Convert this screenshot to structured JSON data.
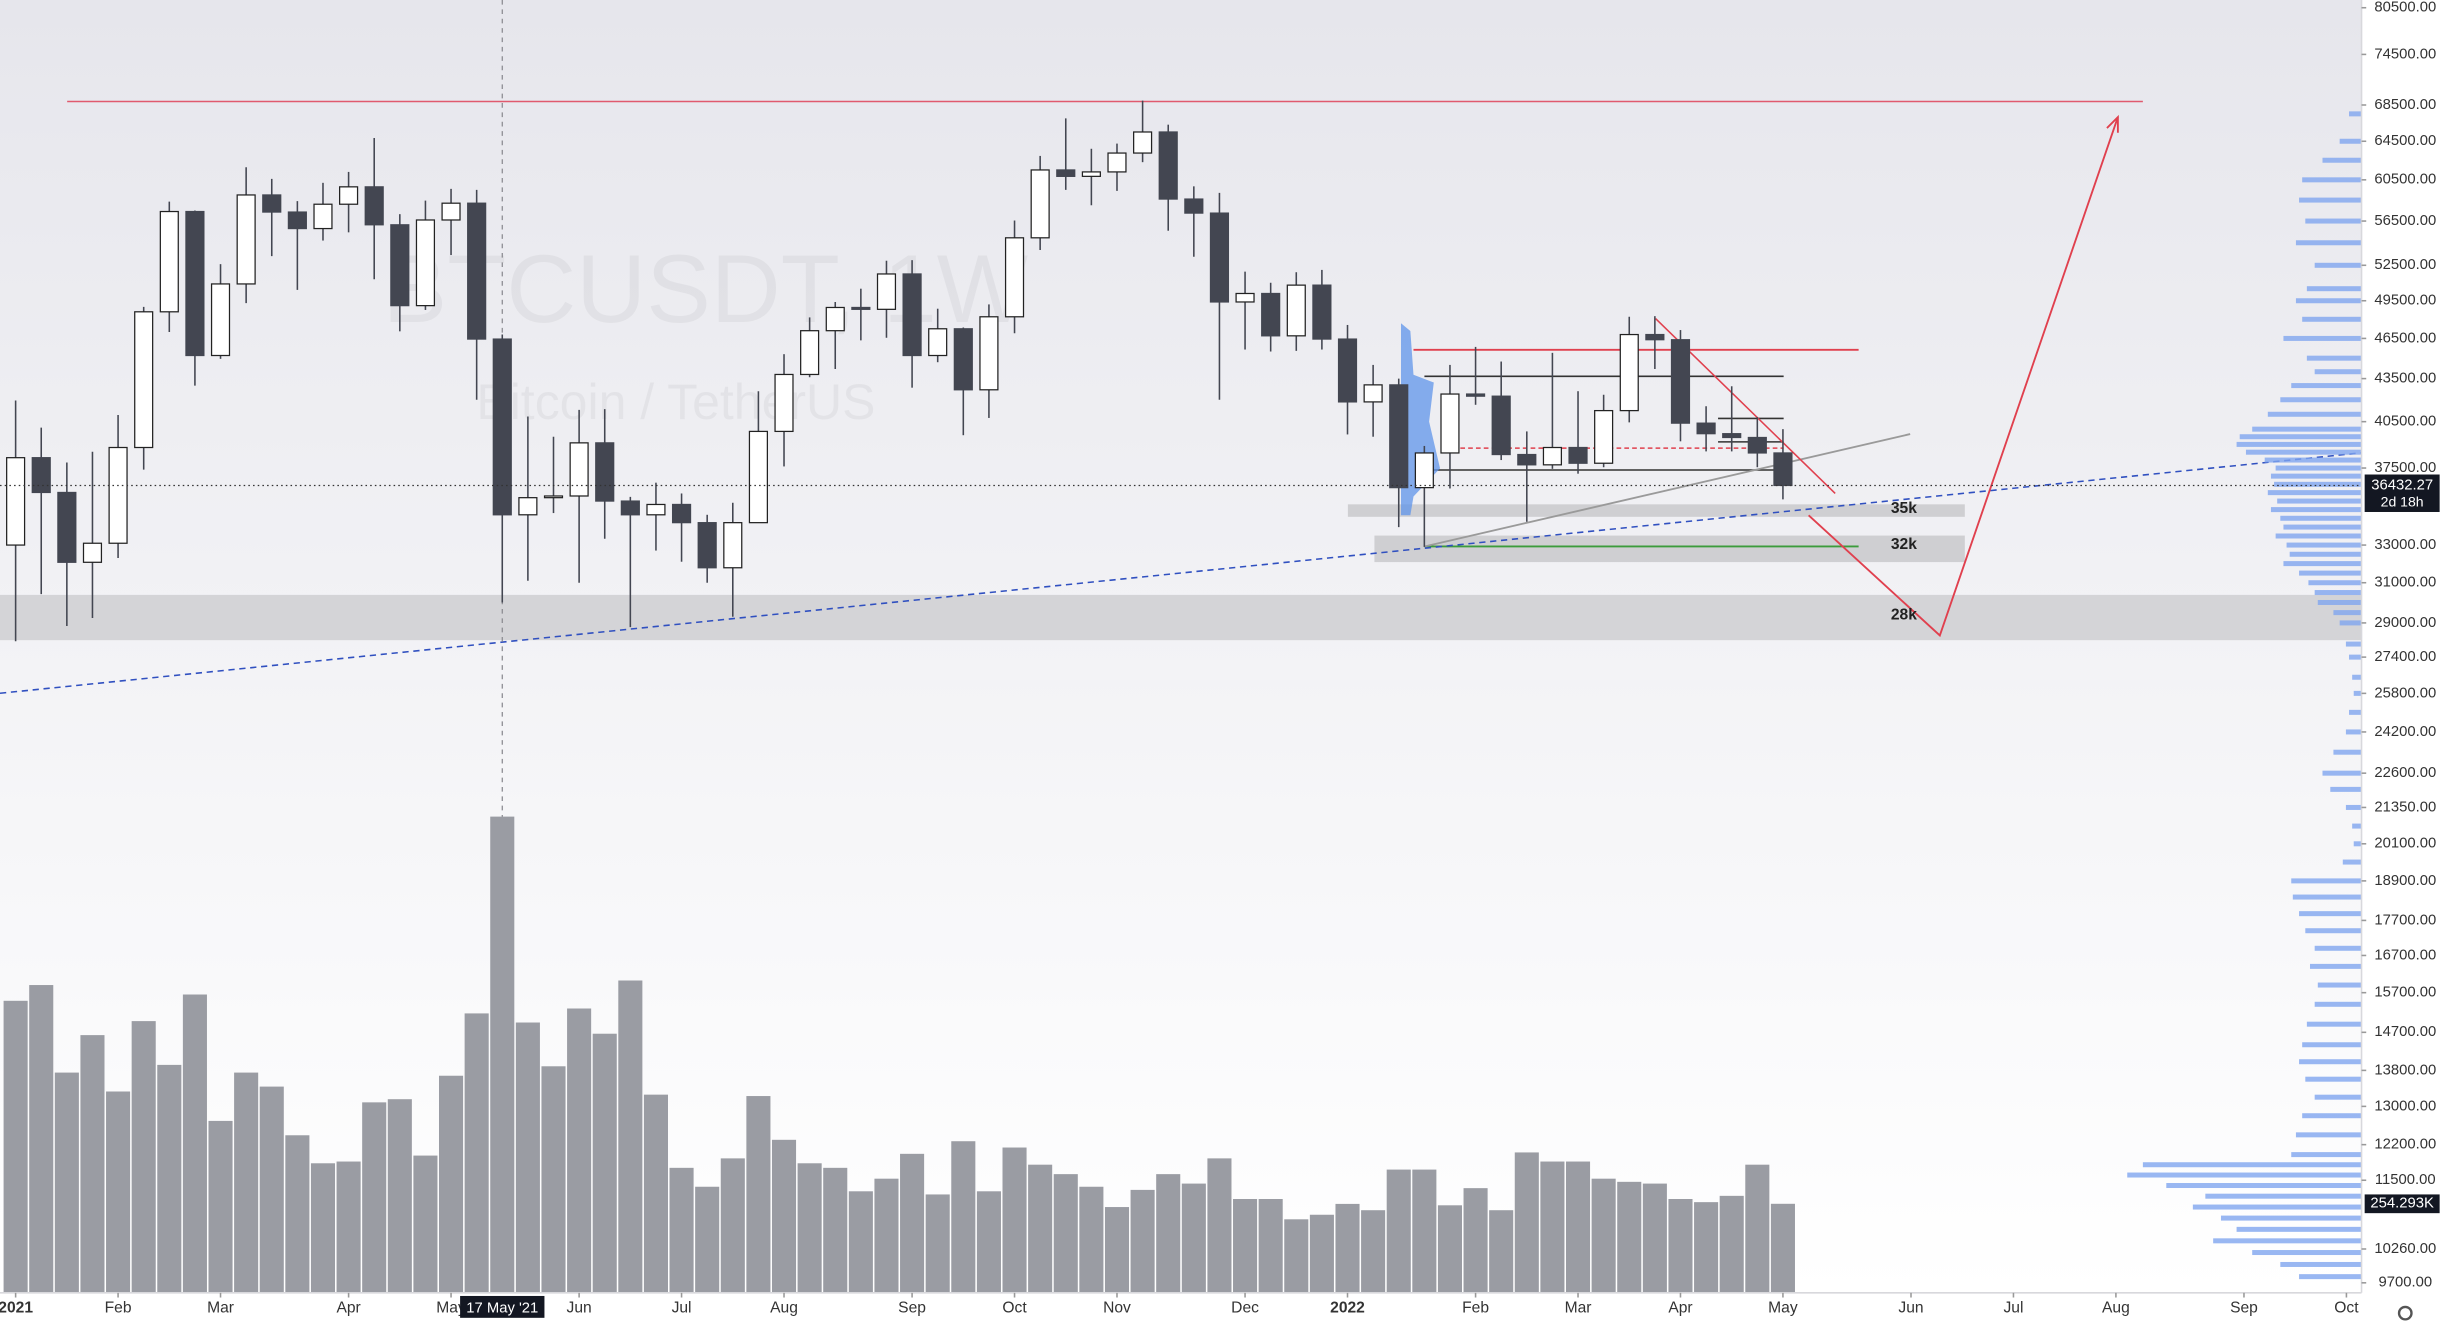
{
  "chart_data": {
    "type": "candlestick",
    "symbol": "BTCUSDT, 1W",
    "description": "Bitcoin / TetherUS",
    "categories": [
      null,
      null,
      null,
      null,
      null,
      null,
      null,
      null,
      null,
      null,
      null,
      null,
      null,
      null,
      null,
      null,
      null,
      null,
      null,
      null,
      null,
      null,
      null,
      null,
      null,
      null,
      null,
      null,
      null,
      null,
      null,
      null,
      null,
      null,
      null,
      null,
      null,
      null,
      null,
      null,
      null,
      null,
      null,
      null,
      null,
      null,
      null,
      null,
      null,
      null,
      null,
      null,
      null,
      null,
      null,
      null,
      null,
      null,
      null,
      null,
      null,
      null,
      null,
      null,
      null,
      null,
      null,
      null,
      null,
      null
    ],
    "open": [
      33000,
      38150,
      36010,
      32070,
      33100,
      38800,
      48600,
      57400,
      45200,
      50900,
      59000,
      57350,
      55800,
      58100,
      59800,
      56150,
      49100,
      56600,
      58200,
      46450,
      34700,
      35700,
      35800,
      39100,
      35500,
      34700,
      35300,
      34250,
      31780,
      34250,
      39850,
      43800,
      47100,
      48950,
      48800,
      51750,
      45200,
      47250,
      42700,
      48200,
      54950,
      61500,
      60850,
      61300,
      63250,
      65500,
      58600,
      57250,
      49400,
      50100,
      46700,
      50800,
      46450,
      41850,
      43050,
      36300,
      38450,
      42400,
      42250,
      38350,
      37700,
      38800,
      37800,
      41250,
      46800,
      46400,
      40400,
      39700,
      39450,
      38450
    ],
    "high": [
      41950,
      40100,
      37850,
      38530,
      40950,
      49000,
      58350,
      57500,
      52600,
      61780,
      60600,
      58400,
      60200,
      61300,
      64850,
      57150,
      58450,
      59600,
      59500,
      46800,
      40850,
      39500,
      41300,
      41350,
      35750,
      36600,
      35950,
      34700,
      35400,
      42600,
      45300,
      48150,
      49400,
      50500,
      52900,
      52950,
      48850,
      47350,
      49200,
      56550,
      62950,
      67000,
      63700,
      64250,
      69000,
      66300,
      59850,
      59200,
      51950,
      51000,
      51900,
      52100,
      47550,
      44500,
      43500,
      38900,
      44500,
      45850,
      44750,
      39850,
      45400,
      42600,
      42350,
      48200,
      48250,
      47150,
      41550,
      42950,
      40800,
      40000
    ],
    "low": [
      28130,
      30420,
      28850,
      29240,
      32300,
      37400,
      47000,
      43000,
      44950,
      49300,
      53300,
      50400,
      54700,
      55450,
      51300,
      47050,
      48750,
      53400,
      42000,
      30000,
      31100,
      34800,
      31000,
      33350,
      28800,
      32700,
      32100,
      31000,
      29300,
      34250,
      37600,
      43600,
      44200,
      46350,
      46550,
      42850,
      44700,
      39600,
      40750,
      46900,
      53850,
      59500,
      58000,
      59400,
      62300,
      55600,
      53250,
      42000,
      45650,
      45500,
      45550,
      45650,
      39650,
      39500,
      34000,
      32900,
      36250,
      41650,
      38000,
      34300,
      37450,
      37150,
      37550,
      40450,
      44200,
      39200,
      38550,
      38550,
      37550,
      35600
    ],
    "close": [
      38150,
      36010,
      32070,
      33100,
      38800,
      48600,
      57400,
      45200,
      50900,
      59000,
      57350,
      55800,
      58100,
      59800,
      56150,
      49100,
      56600,
      58200,
      46450,
      34700,
      35700,
      35800,
      39100,
      35500,
      34700,
      35300,
      34250,
      31780,
      34250,
      39850,
      43800,
      47100,
      48950,
      48800,
      51750,
      45200,
      47250,
      42700,
      48200,
      54950,
      61500,
      60850,
      61300,
      63250,
      65500,
      58600,
      57250,
      49400,
      50100,
      46700,
      50800,
      46450,
      41850,
      43050,
      36300,
      38450,
      42400,
      42250,
      38350,
      37700,
      38800,
      37800,
      41250,
      46800,
      46400,
      40400,
      39700,
      39450,
      38450,
      36432.27
    ],
    "volume": [
      834,
      879,
      629,
      736,
      575,
      776,
      651,
      852,
      491,
      629,
      589,
      450,
      370,
      375,
      544,
      553,
      392,
      620,
      798,
      1360,
      772,
      647,
      812,
      740,
      892,
      566,
      357,
      303,
      384,
      562,
      437,
      370,
      357,
      290,
      326,
      397,
      281,
      433,
      290,
      415,
      366,
      339,
      303,
      245,
      294,
      339,
      312,
      384,
      268,
      268,
      210,
      223,
      254,
      236,
      352,
      352,
      250,
      299,
      236,
      401,
      375,
      375,
      326,
      317,
      312,
      268,
      259,
      277,
      366,
      254.293
    ],
    "last_volume_label": "254.293K",
    "countdown": "2d 18h",
    "up_color": "#ffffff",
    "down_color": "#434651",
    "volume_color": "#9a9ca3",
    "log_scale": true,
    "ylim": [
      9540,
      81540
    ],
    "yticks": [
      {
        "value": 80500,
        "label": "80500.00"
      },
      {
        "value": 74500,
        "label": "74500.00"
      },
      {
        "value": 68500,
        "label": "68500.00"
      },
      {
        "value": 64500,
        "label": "64500.00"
      },
      {
        "value": 60500,
        "label": "60500.00"
      },
      {
        "value": 56500,
        "label": "56500.00"
      },
      {
        "value": 52500,
        "label": "52500.00"
      },
      {
        "value": 49500,
        "label": "49500.00"
      },
      {
        "value": 46500,
        "label": "46500.00"
      },
      {
        "value": 43500,
        "label": "43500.00"
      },
      {
        "value": 40500,
        "label": "40500.00"
      },
      {
        "value": 37500,
        "label": "37500.00"
      },
      {
        "value": 33000,
        "label": "33000.00"
      },
      {
        "value": 31000,
        "label": "31000.00"
      },
      {
        "value": 29000,
        "label": "29000.00"
      },
      {
        "value": 27400,
        "label": "27400.00"
      },
      {
        "value": 25800,
        "label": "25800.00"
      },
      {
        "value": 24200,
        "label": "24200.00"
      },
      {
        "value": 22600,
        "label": "22600.00"
      },
      {
        "value": 21350,
        "label": "21350.00"
      },
      {
        "value": 20100,
        "label": "20100.00"
      },
      {
        "value": 18900,
        "label": "18900.00"
      },
      {
        "value": 17700,
        "label": "17700.00"
      },
      {
        "value": 16700,
        "label": "16700.00"
      },
      {
        "value": 15700,
        "label": "15700.00"
      },
      {
        "value": 14700,
        "label": "14700.00"
      },
      {
        "value": 13800,
        "label": "13800.00"
      },
      {
        "value": 13000,
        "label": "13000.00"
      },
      {
        "value": 12200,
        "label": "12200.00"
      },
      {
        "value": 11500,
        "label": "11500.00"
      },
      {
        "value": 10260,
        "label": "10260.00"
      },
      {
        "value": 9700,
        "label": "9700.00"
      }
    ],
    "xlim": [
      -0.61,
      91.59
    ],
    "xticks": [
      {
        "value": 0,
        "label": "2021"
      },
      {
        "value": 4,
        "label": "Feb"
      },
      {
        "value": 8,
        "label": "Mar"
      },
      {
        "value": 13,
        "label": "Apr"
      },
      {
        "value": 17,
        "label": "May"
      },
      {
        "value": 22,
        "label": "Jun"
      },
      {
        "value": 26,
        "label": "Jul"
      },
      {
        "value": 30,
        "label": "Aug"
      },
      {
        "value": 35,
        "label": "Sep"
      },
      {
        "value": 39,
        "label": "Oct"
      },
      {
        "value": 43,
        "label": "Nov"
      },
      {
        "value": 48,
        "label": "Dec"
      },
      {
        "value": 52,
        "label": "2022"
      },
      {
        "value": 57,
        "label": "Feb"
      },
      {
        "value": 61,
        "label": "Mar"
      },
      {
        "value": 65,
        "label": "Apr"
      },
      {
        "value": 69,
        "label": "May"
      },
      {
        "value": 74,
        "label": "Jun"
      },
      {
        "value": 78,
        "label": "Jul"
      },
      {
        "value": 82,
        "label": "Aug"
      },
      {
        "value": 87,
        "label": "Sep"
      },
      {
        "value": 91,
        "label": "Oct"
      }
    ],
    "crosshair": {
      "value": 19,
      "label": "17 May '21"
    },
    "annotations": [
      "35k",
      "32k",
      "28k"
    ],
    "volume_profile": {
      "color": "#7fa5ef",
      "prices": [
        67500,
        64500,
        62500,
        60500,
        58500,
        56500,
        54500,
        52500,
        50500,
        49500,
        48000,
        46500,
        45000,
        44000,
        43000,
        42000,
        41000,
        40000,
        39500,
        39000,
        38500,
        38000,
        37500,
        37000,
        36500,
        36000,
        35500,
        35000,
        34500,
        34000,
        33500,
        33000,
        32500,
        32000,
        31500,
        31000,
        30500,
        30000,
        29500,
        29000,
        28000,
        27400,
        26500,
        25800,
        25000,
        24200,
        23400,
        22600,
        22000,
        21350,
        20700,
        20100,
        19500,
        18900,
        18400,
        17900,
        17400,
        16900,
        16400,
        15900,
        15400,
        14900,
        14400,
        14000,
        13600,
        13200,
        12800,
        12400,
        12000,
        11800,
        11600,
        11400,
        11200,
        11000,
        10800,
        10600,
        10400,
        10200,
        10000,
        9800
      ],
      "values": [
        8,
        14,
        25,
        38,
        40,
        36,
        42,
        30,
        35,
        42,
        38,
        50,
        35,
        30,
        45,
        52,
        60,
        70,
        78,
        80,
        74,
        62,
        55,
        58,
        56,
        60,
        54,
        58,
        52,
        50,
        55,
        48,
        46,
        50,
        40,
        34,
        30,
        28,
        18,
        14,
        10,
        8,
        6,
        5,
        8,
        10,
        18,
        25,
        20,
        10,
        6,
        5,
        12,
        45,
        44,
        40,
        36,
        30,
        33,
        28,
        30,
        35,
        38,
        40,
        36,
        30,
        38,
        42,
        45,
        140,
        150,
        125,
        100,
        108,
        90,
        80,
        95,
        70,
        52,
        40
      ]
    }
  }
}
